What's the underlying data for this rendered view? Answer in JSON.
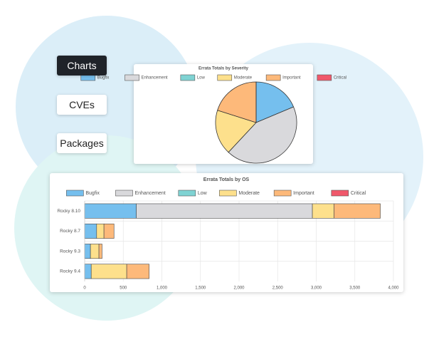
{
  "nav": {
    "buttons": [
      "Charts",
      "CVEs",
      "Packages"
    ]
  },
  "chart_data": [
    {
      "type": "pie",
      "title": "Errata Totals by Severity",
      "categories": [
        "Bugfix",
        "Enhancement",
        "Low",
        "Moderate",
        "Important",
        "Critical"
      ],
      "values": [
        985,
        2280,
        0,
        945,
        1060,
        0
      ],
      "colors": [
        "#75bfee",
        "#d9d9dc",
        "#7fd3d3",
        "#fde08c",
        "#fdb97a",
        "#f0586b"
      ],
      "legend": "top"
    },
    {
      "type": "bar",
      "orientation": "horizontal",
      "stacked": true,
      "title": "Errata Totals by OS",
      "categories": [
        "Rocky 8.10",
        "Rocky 8.7",
        "Rocky 9.3",
        "Rocky 9.4"
      ],
      "series": [
        {
          "name": "Bugfix",
          "color": "#75bfee",
          "values": [
            670,
            155,
            75,
            85
          ]
        },
        {
          "name": "Enhancement",
          "color": "#d9d9dc",
          "values": [
            2280,
            0,
            0,
            0
          ]
        },
        {
          "name": "Low",
          "color": "#7fd3d3",
          "values": [
            0,
            0,
            0,
            0
          ]
        },
        {
          "name": "Moderate",
          "color": "#fde08c",
          "values": [
            280,
            95,
            110,
            460
          ]
        },
        {
          "name": "Important",
          "color": "#fdb97a",
          "values": [
            600,
            130,
            40,
            290
          ]
        },
        {
          "name": "Critical",
          "color": "#f0586b",
          "values": [
            0,
            0,
            0,
            0
          ]
        }
      ],
      "xlim": [
        0,
        4000
      ],
      "xticks": [
        0,
        500,
        {
          "value": 1000,
          "label": "1,000"
        },
        {
          "value": 1500,
          "label": "1,500"
        },
        {
          "value": 2000,
          "label": "2,000"
        },
        {
          "value": 2500,
          "label": "2,500"
        },
        {
          "value": 3000,
          "label": "3,000"
        },
        {
          "value": 3500,
          "label": "3,500"
        },
        {
          "value": 4000,
          "label": "4,000"
        }
      ],
      "grid": true,
      "legend": "top"
    }
  ]
}
